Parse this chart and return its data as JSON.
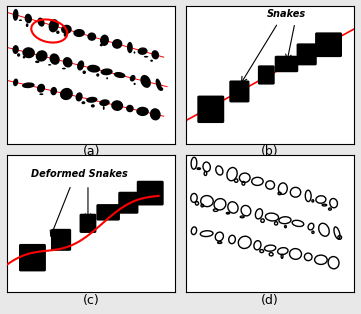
{
  "figure_bg": "#e8e8e8",
  "panel_bg": "#ffffff",
  "labels": [
    "(a)",
    "(b)",
    "(c)",
    "(d)"
  ],
  "label_fontsize": 10,
  "annotation_b": "Snakes",
  "annotation_c": "Deformed Snakes",
  "fig_width": 3.61,
  "fig_height": 3.14,
  "dpi": 100
}
